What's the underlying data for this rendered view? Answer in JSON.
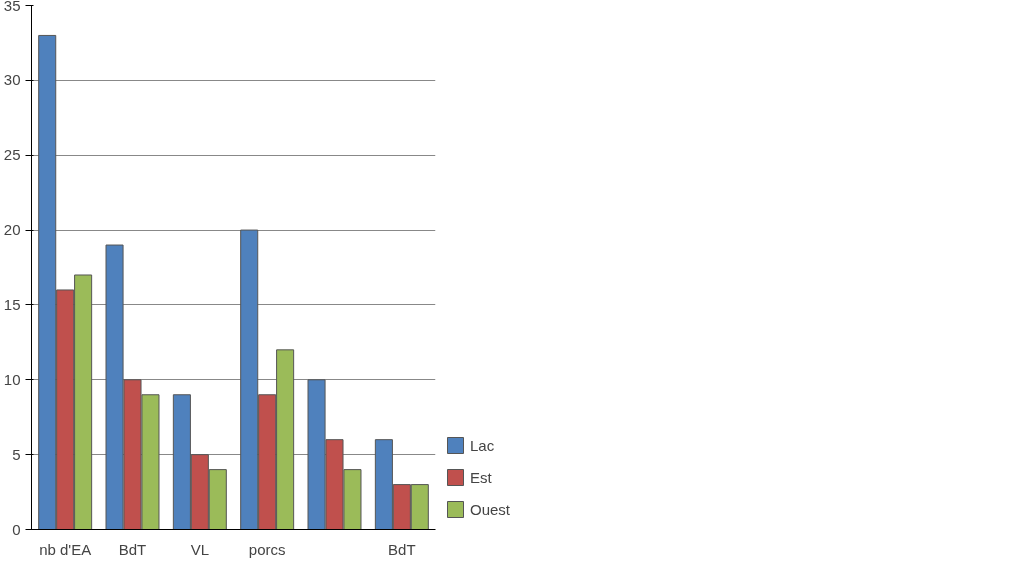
{
  "chart_data": {
    "type": "bar",
    "categories": [
      "nb d'EA",
      "BdT",
      "VL",
      "porcs",
      null,
      "BdT"
    ],
    "series": [
      {
        "name": "Lac",
        "color": "#4f81bd",
        "values": [
          33,
          19,
          9,
          20,
          10,
          6
        ]
      },
      {
        "name": "Est",
        "color": "#c0504d",
        "values": [
          16,
          10,
          5,
          9,
          6,
          3
        ]
      },
      {
        "name": "Ouest",
        "color": "#9bbb59",
        "values": [
          17,
          9,
          4,
          12,
          4,
          3
        ]
      }
    ],
    "ylim": [
      0,
      35
    ],
    "yticks": [
      0,
      5,
      10,
      15,
      20,
      25,
      30,
      35
    ],
    "grid": "y",
    "legend": "right"
  }
}
